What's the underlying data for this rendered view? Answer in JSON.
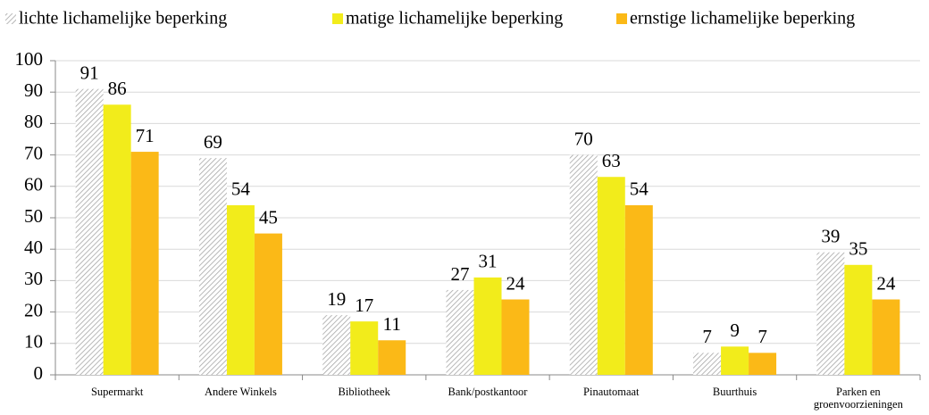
{
  "chart_data": {
    "type": "bar",
    "categories": [
      "Supermarkt",
      "Andere Winkels",
      "Bibliotheek",
      "Bank/postkantoor",
      "Pinautomaat",
      "Buurthuis",
      "Parken en groenvoorzieningen"
    ],
    "series": [
      {
        "name": "lichte lichamelijke beperking",
        "color": "#a6a6a6",
        "pattern": "diagonal-hatch",
        "values": [
          91,
          69,
          19,
          27,
          70,
          7,
          39
        ]
      },
      {
        "name": "matige lichamelijke beperking",
        "color": "#f2ec1b",
        "values": [
          86,
          54,
          17,
          31,
          63,
          9,
          35
        ]
      },
      {
        "name": "ernstige lichamelijke beperking",
        "color": "#fbb917",
        "values": [
          71,
          45,
          11,
          24,
          54,
          7,
          24
        ]
      }
    ],
    "ylim": [
      0,
      100
    ],
    "yticks": [
      0,
      10,
      20,
      30,
      40,
      50,
      60,
      70,
      80,
      90,
      100
    ],
    "grid": true,
    "legend": "top",
    "data_labels": true
  }
}
